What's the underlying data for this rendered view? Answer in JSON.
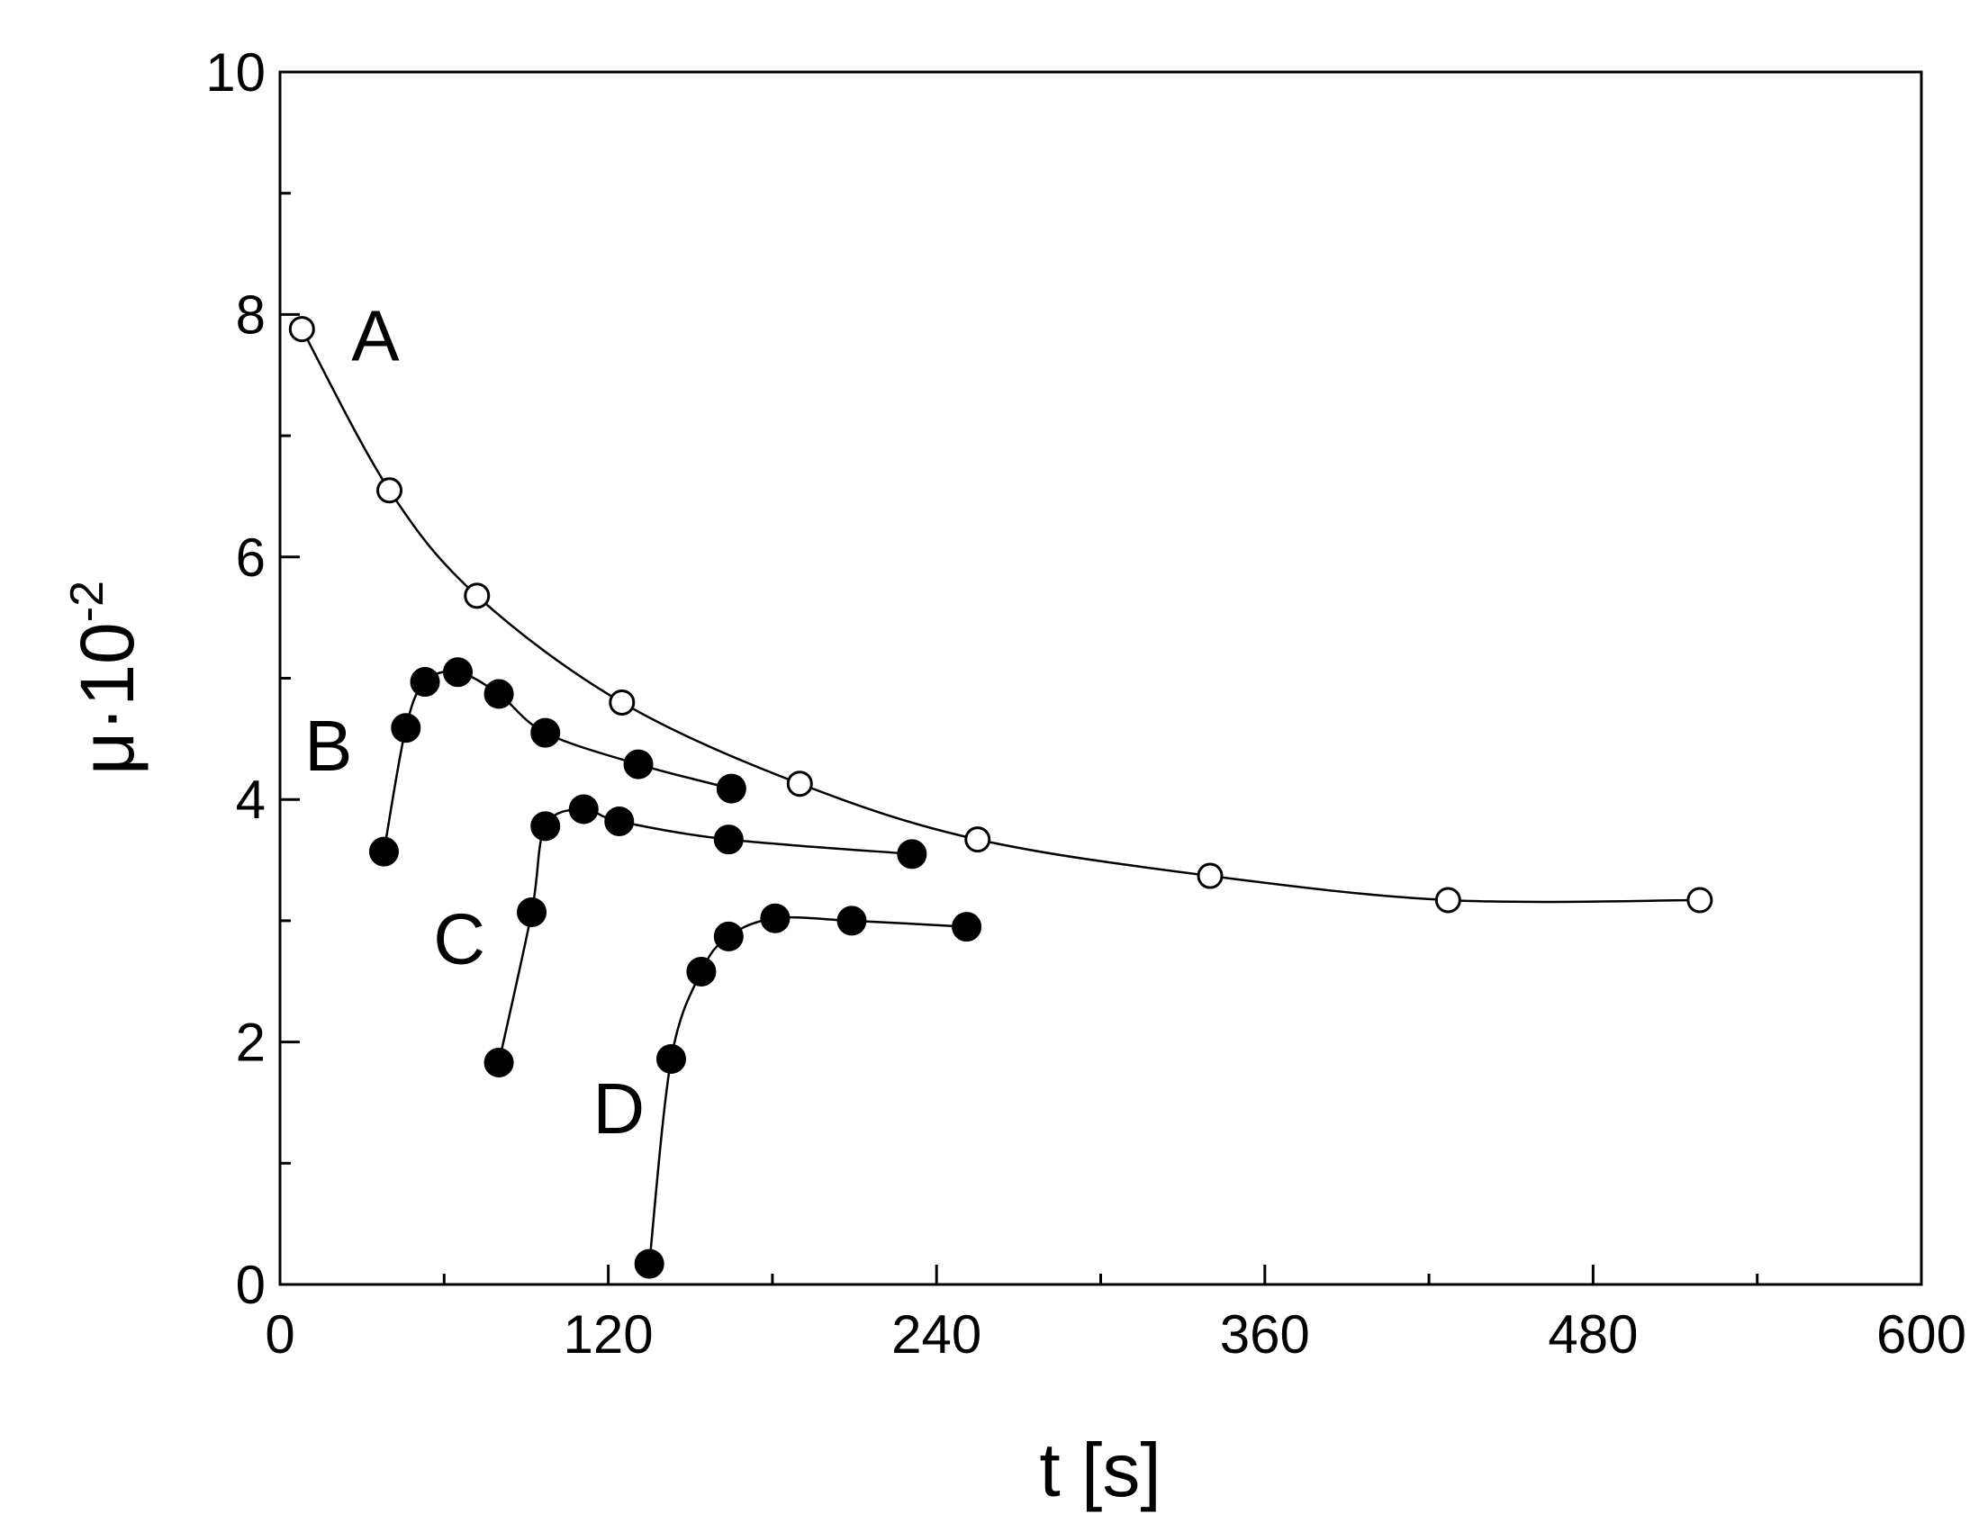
{
  "chart_data": {
    "type": "line",
    "title": "",
    "xlabel": "t [s]",
    "ylabel": {
      "base": "μ·10",
      "exponent": "-2"
    },
    "xlim": [
      0,
      600
    ],
    "ylim": [
      0,
      10
    ],
    "xticks": [
      0,
      120,
      240,
      360,
      480,
      600
    ],
    "xtick_labels": [
      "0",
      "120",
      "240",
      "360",
      "480",
      "600"
    ],
    "yticks": [
      0,
      2,
      4,
      6,
      8,
      10
    ],
    "ytick_labels": [
      "0",
      "2",
      "4",
      "6",
      "8",
      "10"
    ],
    "grid": false,
    "legend": "none",
    "series": [
      {
        "name": "A",
        "marker": "open-circle",
        "x": [
          8,
          40,
          72,
          125,
          190,
          255,
          340,
          427,
          519
        ],
        "y": [
          7.88,
          6.55,
          5.68,
          4.8,
          4.13,
          3.67,
          3.37,
          3.17,
          3.17
        ]
      },
      {
        "name": "B",
        "marker": "filled-circle",
        "x": [
          38,
          46,
          53,
          65,
          80,
          97,
          131,
          165
        ],
        "y": [
          3.57,
          4.59,
          4.97,
          5.05,
          4.87,
          4.55,
          4.29,
          4.09
        ]
      },
      {
        "name": "C",
        "marker": "filled-circle",
        "x": [
          80,
          92,
          97,
          111,
          124,
          164,
          231
        ],
        "y": [
          1.83,
          3.07,
          3.78,
          3.92,
          3.82,
          3.67,
          3.55
        ]
      },
      {
        "name": "D",
        "marker": "filled-circle",
        "x": [
          135,
          143,
          154,
          164,
          181,
          209,
          251
        ],
        "y": [
          0.17,
          1.86,
          2.58,
          2.87,
          3.02,
          3.0,
          2.95
        ]
      }
    ]
  }
}
